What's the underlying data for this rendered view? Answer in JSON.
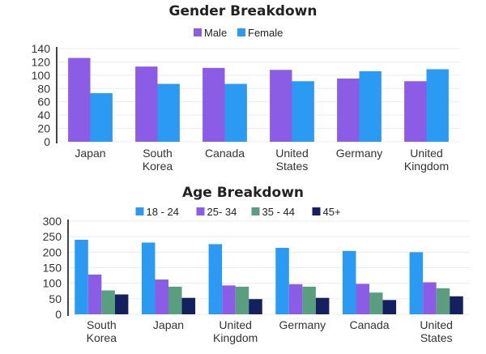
{
  "chart_data": [
    {
      "type": "bar",
      "title": "Gender Breakdown",
      "categories": [
        [
          "Japan"
        ],
        [
          "South",
          "Korea"
        ],
        [
          "Canada"
        ],
        [
          "United",
          "States"
        ],
        [
          "Germany"
        ],
        [
          "United",
          "Kingdom"
        ]
      ],
      "series": [
        {
          "name": "Male",
          "color": "#8b5ce6",
          "values": [
            126,
            113,
            111,
            108,
            95,
            91
          ]
        },
        {
          "name": "Female",
          "color": "#2b9af3",
          "values": [
            73,
            87,
            87,
            91,
            106,
            109
          ]
        }
      ],
      "ylim": [
        0,
        140
      ],
      "yticks": [
        0,
        20,
        40,
        60,
        80,
        100,
        120,
        140
      ],
      "grid": true,
      "legend": "top"
    },
    {
      "type": "bar",
      "title": "Age Breakdown",
      "categories": [
        [
          "South",
          "Korea"
        ],
        [
          "Japan"
        ],
        [
          "United",
          "Kingdom"
        ],
        [
          "Germany"
        ],
        [
          "Canada"
        ],
        [
          "United",
          "States"
        ]
      ],
      "series": [
        {
          "name": "18 - 24",
          "color": "#2b9af3",
          "values": [
            240,
            231,
            226,
            214,
            204,
            200
          ]
        },
        {
          "name": "25- 34",
          "color": "#8b5ce6",
          "values": [
            128,
            112,
            93,
            97,
            98,
            103
          ]
        },
        {
          "name": "35 - 44",
          "color": "#5a9e80",
          "values": [
            77,
            89,
            89,
            89,
            70,
            84
          ]
        },
        {
          "name": "45+",
          "color": "#14215e",
          "values": [
            64,
            53,
            49,
            53,
            46,
            58
          ]
        }
      ],
      "ylim": [
        0,
        300
      ],
      "yticks": [
        0,
        50,
        100,
        150,
        200,
        250,
        300
      ],
      "grid": true,
      "legend": "top"
    }
  ]
}
